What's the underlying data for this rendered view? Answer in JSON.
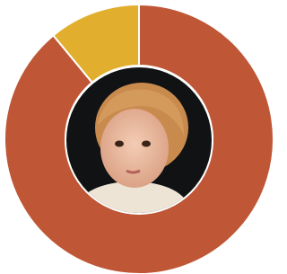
{
  "chart_data": {
    "type": "donut",
    "values": [
      89,
      11
    ],
    "colors": [
      "#bf5737",
      "#e2ae2e"
    ]
  }
}
